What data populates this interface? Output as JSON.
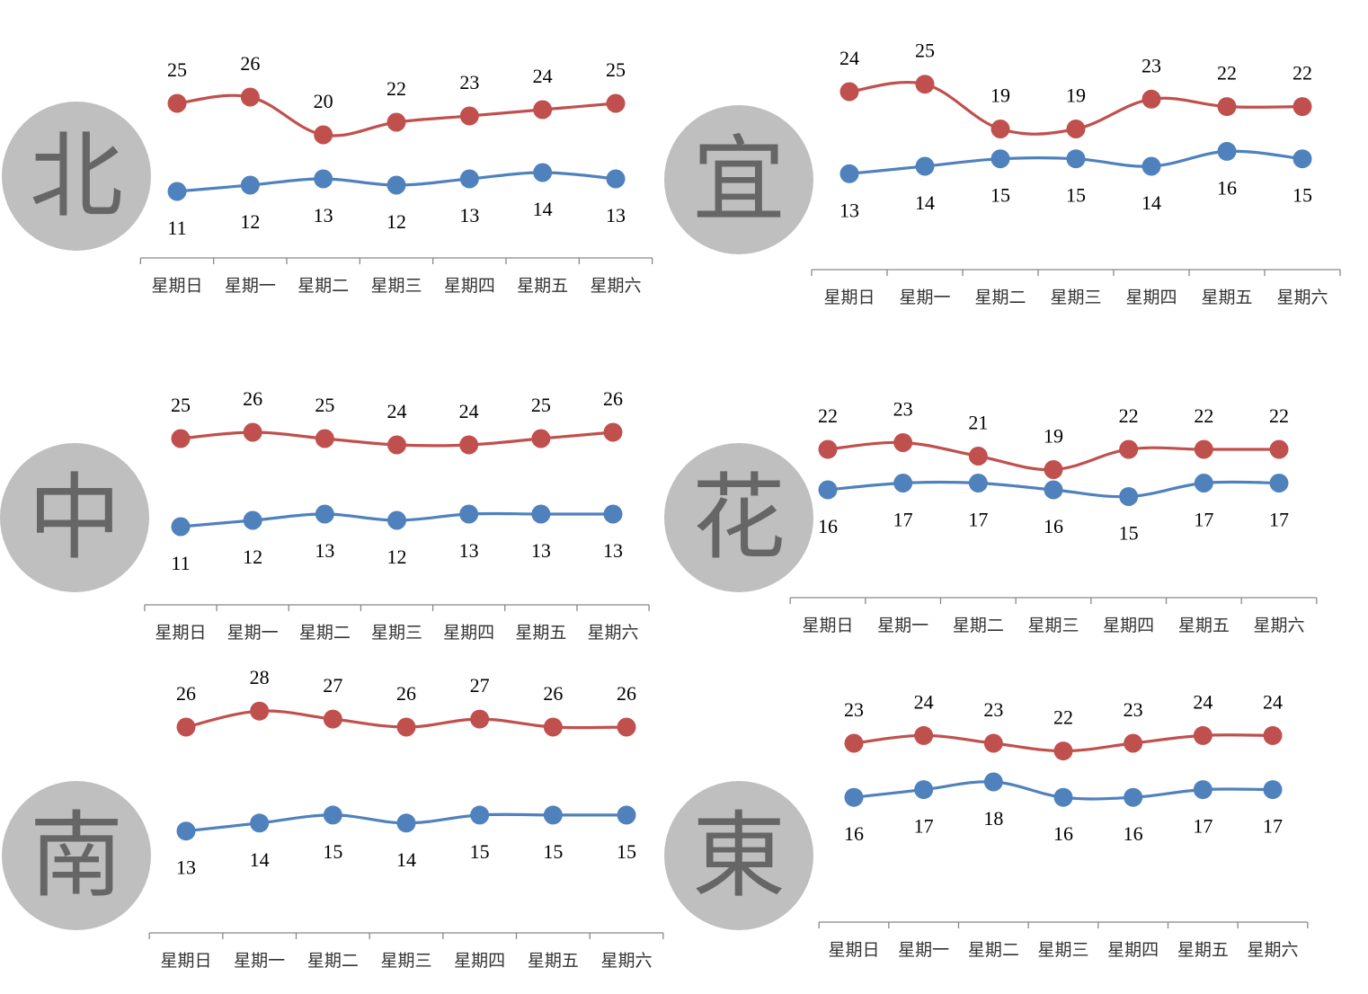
{
  "colors": {
    "high": "#c0504d",
    "low": "#4f81bd",
    "badge": "#bfbfbf",
    "axis": "#888888"
  },
  "chart_data": [
    {
      "type": "line",
      "label": "北",
      "categories": [
        "星期日",
        "星期一",
        "星期二",
        "星期三",
        "星期四",
        "星期五",
        "星期六"
      ],
      "series": [
        {
          "values": [
            25,
            26,
            20,
            22,
            23,
            24,
            25
          ]
        },
        {
          "values": [
            11,
            12,
            13,
            12,
            13,
            14,
            13
          ]
        }
      ]
    },
    {
      "type": "line",
      "label": "宜",
      "categories": [
        "星期日",
        "星期一",
        "星期二",
        "星期三",
        "星期四",
        "星期五",
        "星期六"
      ],
      "series": [
        {
          "values": [
            24,
            25,
            19,
            19,
            23,
            22,
            22
          ]
        },
        {
          "values": [
            13,
            14,
            15,
            15,
            14,
            16,
            15
          ]
        }
      ]
    },
    {
      "type": "line",
      "label": "中",
      "categories": [
        "星期日",
        "星期一",
        "星期二",
        "星期三",
        "星期四",
        "星期五",
        "星期六"
      ],
      "series": [
        {
          "values": [
            25,
            26,
            25,
            24,
            24,
            25,
            26
          ]
        },
        {
          "values": [
            11,
            12,
            13,
            12,
            13,
            13,
            13
          ]
        }
      ]
    },
    {
      "type": "line",
      "label": "花",
      "categories": [
        "星期日",
        "星期一",
        "星期二",
        "星期三",
        "星期四",
        "星期五",
        "星期六"
      ],
      "series": [
        {
          "values": [
            22,
            23,
            21,
            19,
            22,
            22,
            22
          ]
        },
        {
          "values": [
            16,
            17,
            17,
            16,
            15,
            17,
            17
          ]
        }
      ]
    },
    {
      "type": "line",
      "label": "南",
      "categories": [
        "星期日",
        "星期一",
        "星期二",
        "星期三",
        "星期四",
        "星期五",
        "星期六"
      ],
      "series": [
        {
          "values": [
            26,
            28,
            27,
            26,
            27,
            26,
            26
          ]
        },
        {
          "values": [
            13,
            14,
            15,
            14,
            15,
            15,
            15
          ]
        }
      ]
    },
    {
      "type": "line",
      "label": "東",
      "categories": [
        "星期日",
        "星期一",
        "星期二",
        "星期三",
        "星期四",
        "星期五",
        "星期六"
      ],
      "series": [
        {
          "values": [
            23,
            24,
            23,
            22,
            23,
            24,
            24
          ]
        },
        {
          "values": [
            16,
            17,
            18,
            16,
            16,
            17,
            17
          ]
        }
      ]
    }
  ]
}
